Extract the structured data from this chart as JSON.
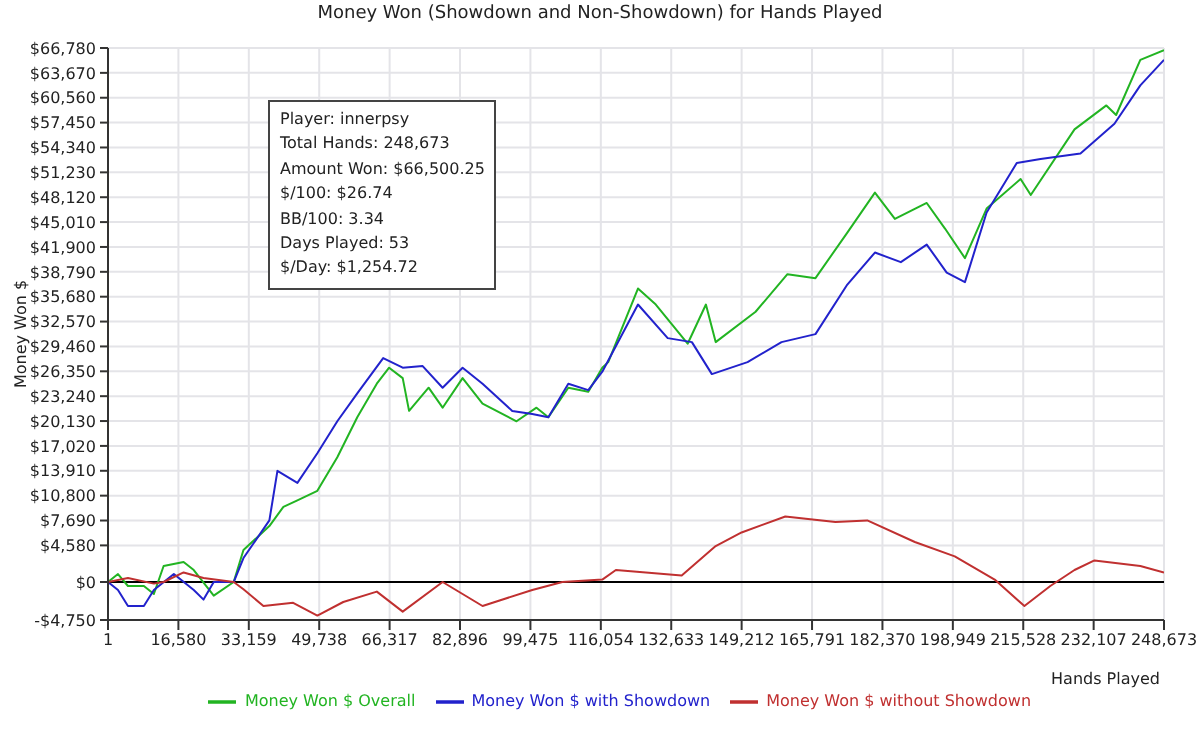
{
  "chart_data": {
    "type": "line",
    "title": "Money Won (Showdown and Non-Showdown) for Hands Played",
    "xlabel": "Hands Played",
    "ylabel": "Money Won $",
    "annotations": [
      "Player: innerpsy",
      "Total Hands: 248,673",
      "Amount Won: $66,500.25",
      "$/100: $26.74",
      "BB/100: 3.34",
      "Days Played: 53",
      "$/Day: $1,254.72"
    ],
    "xlim": [
      1,
      248673
    ],
    "xticks": [
      {
        "value": 1,
        "label": "1"
      },
      {
        "value": 16580,
        "label": "16,580"
      },
      {
        "value": 33159,
        "label": "33,159"
      },
      {
        "value": 49738,
        "label": "49,738"
      },
      {
        "value": 66317,
        "label": "66,317"
      },
      {
        "value": 82896,
        "label": "82,896"
      },
      {
        "value": 99475,
        "label": "99,475"
      },
      {
        "value": 116054,
        "label": "116,054"
      },
      {
        "value": 132633,
        "label": "132,633"
      },
      {
        "value": 149212,
        "label": "149,212"
      },
      {
        "value": 165791,
        "label": "165,791"
      },
      {
        "value": 182370,
        "label": "182,370"
      },
      {
        "value": 198949,
        "label": "198,949"
      },
      {
        "value": 215528,
        "label": "215,528"
      },
      {
        "value": 232107,
        "label": "232,107"
      },
      {
        "value": 248673,
        "label": "248,673"
      }
    ],
    "ylim": [
      -4750,
      66780
    ],
    "yticks": [
      {
        "value": -4750,
        "label": "-$4,750"
      },
      {
        "value": 0,
        "label": "$0"
      },
      {
        "value": 4580,
        "label": "$4,580"
      },
      {
        "value": 7690,
        "label": "$7,690"
      },
      {
        "value": 10800,
        "label": "$10,800"
      },
      {
        "value": 13910,
        "label": "$13,910"
      },
      {
        "value": 17020,
        "label": "$17,020"
      },
      {
        "value": 20130,
        "label": "$20,130"
      },
      {
        "value": 23240,
        "label": "$23,240"
      },
      {
        "value": 26350,
        "label": "$26,350"
      },
      {
        "value": 29460,
        "label": "$29,460"
      },
      {
        "value": 32570,
        "label": "$32,570"
      },
      {
        "value": 35680,
        "label": "$35,680"
      },
      {
        "value": 38790,
        "label": "$38,790"
      },
      {
        "value": 41900,
        "label": "$41,900"
      },
      {
        "value": 45010,
        "label": "$45,010"
      },
      {
        "value": 48120,
        "label": "$48,120"
      },
      {
        "value": 51230,
        "label": "$51,230"
      },
      {
        "value": 54340,
        "label": "$54,340"
      },
      {
        "value": 57450,
        "label": "$57,450"
      },
      {
        "value": 60560,
        "label": "$60,560"
      },
      {
        "value": 63670,
        "label": "$63,670"
      },
      {
        "value": 66780,
        "label": "$66,780"
      }
    ],
    "grid": true,
    "legend": "bottom",
    "ref_lines": [
      {
        "axis": "y",
        "value": 0,
        "color": "#000000"
      }
    ],
    "series": [
      {
        "name": "Money Won $ Overall",
        "color": "#22b422",
        "x": [
          1,
          2350,
          4700,
          8450,
          10800,
          13100,
          17800,
          20200,
          24900,
          29600,
          31900,
          38000,
          41300,
          44600,
          49300,
          54000,
          58700,
          63300,
          66200,
          69400,
          70900,
          75500,
          78800,
          83500,
          88200,
          96200,
          100900,
          103700,
          108400,
          113100,
          116400,
          117800,
          124800,
          129000,
          136500,
          140800,
          143100,
          152500,
          160000,
          166600,
          174100,
          180600,
          185300,
          192800,
          197100,
          201800,
          206900,
          214900,
          217300,
          227600,
          235100,
          237400,
          243100,
          248673
        ],
        "values": [
          0,
          1000,
          -500,
          -500,
          -1500,
          2000,
          2500,
          1500,
          -1700,
          0,
          4000,
          7000,
          9400,
          10200,
          11400,
          15600,
          20600,
          24800,
          26800,
          25500,
          21400,
          24300,
          21800,
          25500,
          22300,
          20100,
          21800,
          20600,
          24300,
          23800,
          26800,
          27500,
          36700,
          34700,
          29800,
          34700,
          30000,
          33800,
          38500,
          38000,
          43700,
          48700,
          45400,
          47400,
          44200,
          40500,
          46700,
          50400,
          48400,
          56600,
          59600,
          58400,
          65300,
          66500
        ]
      },
      {
        "name": "Money Won $ with Showdown",
        "color": "#2222cc",
        "x": [
          1,
          2350,
          4700,
          8450,
          10800,
          15500,
          20200,
          22500,
          24900,
          29600,
          31900,
          38000,
          39900,
          44600,
          49300,
          54000,
          58700,
          64800,
          69400,
          74100,
          78800,
          83500,
          88200,
          95200,
          99900,
          103700,
          108400,
          113100,
          116400,
          124800,
          131800,
          137500,
          142200,
          150600,
          158600,
          166600,
          174100,
          180600,
          186700,
          192800,
          197500,
          201800,
          206900,
          214000,
          219600,
          229000,
          237000,
          243100,
          248673
        ],
        "values": [
          0,
          -1000,
          -3000,
          -3000,
          -1000,
          1000,
          -1000,
          -2200,
          0,
          0,
          3000,
          7700,
          13900,
          12400,
          16100,
          20100,
          23600,
          28000,
          26800,
          27000,
          24300,
          26800,
          24800,
          21400,
          21000,
          20600,
          24800,
          24000,
          26300,
          34700,
          30500,
          30000,
          26000,
          27500,
          30000,
          31000,
          37200,
          41200,
          40000,
          42200,
          38700,
          37500,
          46200,
          52400,
          52900,
          53600,
          57300,
          62100,
          65300
        ]
      },
      {
        "name": "Money Won $ without Showdown",
        "color": "#c03030",
        "x": [
          1,
          4700,
          10800,
          13100,
          17800,
          22500,
          29600,
          31900,
          36600,
          43600,
          49300,
          55400,
          63300,
          69400,
          78800,
          88200,
          99900,
          107000,
          116400,
          119600,
          135100,
          143100,
          149200,
          159500,
          171300,
          178800,
          190000,
          199400,
          208800,
          215800,
          221900,
          227600,
          232300,
          243100,
          248673
        ],
        "values": [
          0,
          500,
          -200,
          0,
          1200,
          500,
          0,
          -900,
          -3000,
          -2600,
          -4200,
          -2500,
          -1200,
          -3700,
          0,
          -3000,
          -1000,
          0,
          300,
          1500,
          800,
          4500,
          6200,
          8200,
          7500,
          7700,
          5000,
          3200,
          300,
          -3000,
          -500,
          1500,
          2700,
          2000,
          1200
        ]
      }
    ]
  }
}
